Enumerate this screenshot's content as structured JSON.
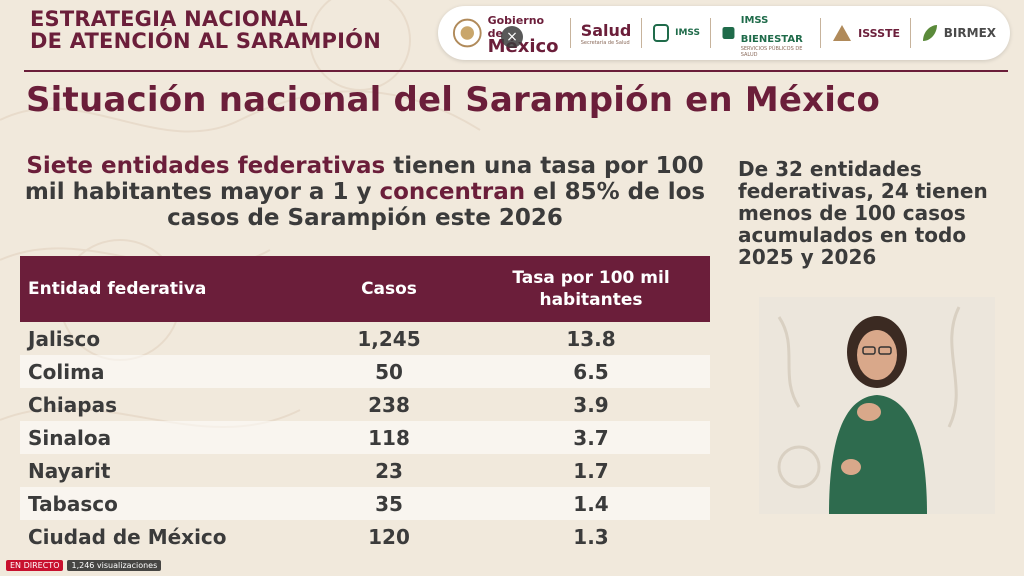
{
  "header": {
    "title_line1": "ESTRATEGIA NACIONAL",
    "title_line2": "DE ATENCIÓN AL SARAMPIÓN"
  },
  "logos": {
    "gobierno_line1": "Gobierno de",
    "gobierno_line2": "México",
    "salud": "Salud",
    "salud_sub": "Secretaría de Salud",
    "imss": "IMSS",
    "imss_bienestar": "IMSS BIENESTAR",
    "imss_bienestar_sub": "SERVICIOS PÚBLICOS DE SALUD",
    "issste": "ISSSTE",
    "birmex": "BIRMEX"
  },
  "main_title": "Situación nacional del Sarampión en México",
  "subtitle": {
    "part1": "Siete entidades federativas",
    "part2": " tienen una tasa por 100 mil habitantes mayor a 1 y ",
    "part3": "concentran",
    "part4": " el 85% de los casos de Sarampión este 2026"
  },
  "sidenote": "De 32 entidades federativas, 24 tienen menos de 100 casos acumulados en todo 2025 y 2026",
  "table": {
    "headers": [
      "Entidad federativa",
      "Casos",
      "Tasa por 100 mil habitantes"
    ],
    "rows": [
      [
        "Jalisco",
        "1,245",
        "13.8"
      ],
      [
        "Colima",
        "50",
        "6.5"
      ],
      [
        "Chiapas",
        "238",
        "3.9"
      ],
      [
        "Sinaloa",
        "118",
        "3.7"
      ],
      [
        "Nayarit",
        "23",
        "1.7"
      ],
      [
        "Tabasco",
        "35",
        "1.4"
      ],
      [
        "Ciudad de México",
        "120",
        "1.3"
      ]
    ]
  },
  "player": {
    "live": "EN DIRECTO",
    "views": "1,246 visualizaciones",
    "close_icon": "×"
  },
  "colors": {
    "accent": "#6b1e3a",
    "background": "#f1e9dc",
    "text": "#3b3b3b",
    "live": "#c8102e"
  }
}
